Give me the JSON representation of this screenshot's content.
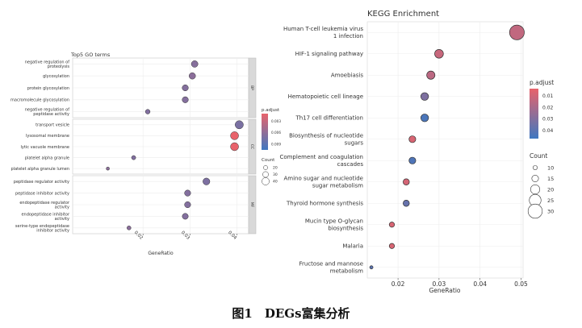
{
  "caption": "图1　DEGs富集分析",
  "chart_data": [
    {
      "id": "go",
      "type": "scatter",
      "title": "Top5 GO terms",
      "xlabel": "GeneRatio",
      "xticks": [
        0.02,
        0.03,
        0.04
      ],
      "xlim": [
        0.005,
        0.0425
      ],
      "groups": [
        {
          "strip": "BP",
          "terms": [
            {
              "label": "negative regulation of\nproteolysis",
              "x": 0.031,
              "p": 0.0065,
              "count": 35
            },
            {
              "label": "glycosylation",
              "x": 0.0305,
              "p": 0.0062,
              "count": 34
            },
            {
              "label": "protein glycosylation",
              "x": 0.029,
              "p": 0.0066,
              "count": 32
            },
            {
              "label": "macromolecule glycosylation",
              "x": 0.029,
              "p": 0.0066,
              "count": 32
            },
            {
              "label": "negative regulation of\npeptidase activity",
              "x": 0.021,
              "p": 0.0068,
              "count": 23
            }
          ]
        },
        {
          "strip": "CC",
          "terms": [
            {
              "label": "transport vesicle",
              "x": 0.0405,
              "p": 0.0072,
              "count": 45
            },
            {
              "label": "lysosomal membrane",
              "x": 0.0395,
              "p": 0.0,
              "count": 44
            },
            {
              "label": "lytic vacuole membrane",
              "x": 0.0395,
              "p": 0.0,
              "count": 44
            },
            {
              "label": "platelet alpha granule",
              "x": 0.018,
              "p": 0.0068,
              "count": 20
            },
            {
              "label": "platelet alpha granule lumen",
              "x": 0.0125,
              "p": 0.0062,
              "count": 14
            }
          ]
        },
        {
          "strip": "MF",
          "terms": [
            {
              "label": "peptidase regulator activity",
              "x": 0.0335,
              "p": 0.007,
              "count": 37
            },
            {
              "label": "peptidase inhibitor activity",
              "x": 0.0295,
              "p": 0.0067,
              "count": 32
            },
            {
              "label": "endopeptidase regulator\nactivity",
              "x": 0.0295,
              "p": 0.0067,
              "count": 32
            },
            {
              "label": "endopeptidase inhibitor\nactivity",
              "x": 0.029,
              "p": 0.0067,
              "count": 31
            },
            {
              "label": "serine-type endopeptidase\ninhibitor activity",
              "x": 0.017,
              "p": 0.0063,
              "count": 19
            }
          ]
        }
      ],
      "legend": {
        "color_title": "p.adjust",
        "color_ticks": [
          0.003,
          0.006,
          0.009
        ],
        "color_range": [
          0.001,
          0.0105
        ],
        "size_title": "Count",
        "size_ticks": [
          20,
          30,
          40
        ]
      }
    },
    {
      "id": "kegg",
      "type": "scatter",
      "title": "KEGG Enrichment",
      "xlabel": "GeneRatio",
      "xticks": [
        0.02,
        0.03,
        0.04,
        0.05
      ],
      "xlim": [
        0.0125,
        0.0505
      ],
      "terms": [
        {
          "label": "Human T-cell leukemia virus\n1 infection",
          "x": 0.049,
          "p": 0.014,
          "count": 31
        },
        {
          "label": "HIF-1 signaling pathway",
          "x": 0.03,
          "p": 0.0125,
          "count": 19
        },
        {
          "label": "Amoebiasis",
          "x": 0.028,
          "p": 0.0155,
          "count": 18
        },
        {
          "label": "Hematopoietic cell lineage",
          "x": 0.0265,
          "p": 0.031,
          "count": 17
        },
        {
          "label": "Th17 cell differentiation",
          "x": 0.0265,
          "p": 0.044,
          "count": 17
        },
        {
          "label": "Biosynthesis of nucleotide\nsugars",
          "x": 0.0235,
          "p": 0.008,
          "count": 15
        },
        {
          "label": "Complement and coagulation\ncascades",
          "x": 0.0235,
          "p": 0.043,
          "count": 15
        },
        {
          "label": "Amino sugar and nucleotide\nsugar metabolism",
          "x": 0.022,
          "p": 0.009,
          "count": 14
        },
        {
          "label": "Thyroid hormone synthesis",
          "x": 0.022,
          "p": 0.037,
          "count": 14
        },
        {
          "label": "Mucin type O-glycan\nbiosynthesis",
          "x": 0.0185,
          "p": 0.008,
          "count": 12
        },
        {
          "label": "Malaria",
          "x": 0.0185,
          "p": 0.008,
          "count": 12
        },
        {
          "label": "Fructose and mannose\nmetabolism",
          "x": 0.0135,
          "p": 0.04,
          "count": 8
        }
      ],
      "legend": {
        "color_title": "p.adjust",
        "color_ticks": [
          0.01,
          0.02,
          0.03,
          0.04
        ],
        "color_range": [
          0.004,
          0.047
        ],
        "size_title": "Count",
        "size_ticks": [
          10,
          15,
          20,
          25,
          30
        ]
      }
    }
  ]
}
